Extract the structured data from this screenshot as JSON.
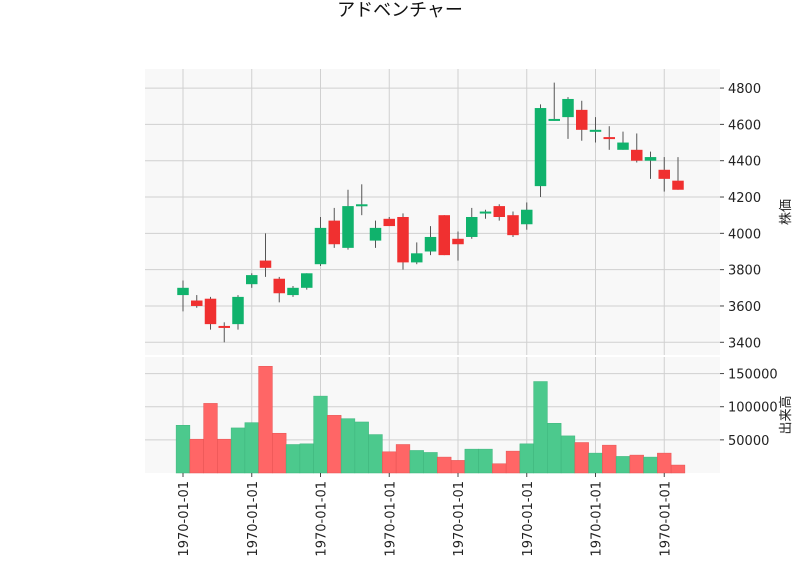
{
  "chart_data": {
    "type": "candlestick",
    "title": "アドベンチャー",
    "xlabel": "",
    "x_tick_labels": [
      "1970-01-01",
      "1970-01-01",
      "1970-01-01",
      "1970-01-01",
      "1970-01-01",
      "1970-01-01",
      "1970-01-01",
      "1970-01-01"
    ],
    "price_panel": {
      "ylabel": "株価",
      "ylim": [
        3330,
        4905
      ],
      "yticks": [
        3400,
        3600,
        3800,
        4000,
        4200,
        4400,
        4600,
        4800
      ],
      "grid": true
    },
    "volume_panel": {
      "ylabel": "出来高",
      "ylim": [
        0,
        175000
      ],
      "yticks": [
        50000,
        100000,
        150000
      ],
      "grid": true
    },
    "colors": {
      "up": "#10b26c",
      "down": "#f03030",
      "wick": "#555555",
      "grid": "#d0d0d0",
      "panel_bg": "#f8f8f8"
    },
    "candles": [
      {
        "open": 3660,
        "high": 3740,
        "low": 3570,
        "close": 3700,
        "volume": 72000
      },
      {
        "open": 3630,
        "high": 3660,
        "low": 3590,
        "close": 3600,
        "volume": 51000
      },
      {
        "open": 3640,
        "high": 3650,
        "low": 3470,
        "close": 3500,
        "volume": 105000
      },
      {
        "open": 3490,
        "high": 3510,
        "low": 3400,
        "close": 3480,
        "volume": 51000
      },
      {
        "open": 3500,
        "high": 3660,
        "low": 3470,
        "close": 3650,
        "volume": 68000
      },
      {
        "open": 3720,
        "high": 3780,
        "low": 3700,
        "close": 3770,
        "volume": 76000
      },
      {
        "open": 3850,
        "high": 4000,
        "low": 3760,
        "close": 3810,
        "volume": 161000
      },
      {
        "open": 3750,
        "high": 3760,
        "low": 3620,
        "close": 3670,
        "volume": 60000
      },
      {
        "open": 3660,
        "high": 3710,
        "low": 3650,
        "close": 3700,
        "volume": 43000
      },
      {
        "open": 3700,
        "high": 3780,
        "low": 3690,
        "close": 3780,
        "volume": 44000
      },
      {
        "open": 3830,
        "high": 4090,
        "low": 3820,
        "close": 4030,
        "volume": 116000
      },
      {
        "open": 4070,
        "high": 4140,
        "low": 3920,
        "close": 3940,
        "volume": 87000
      },
      {
        "open": 3920,
        "high": 4240,
        "low": 3910,
        "close": 4150,
        "volume": 82000
      },
      {
        "open": 4150,
        "high": 4270,
        "low": 4100,
        "close": 4160,
        "volume": 77000
      },
      {
        "open": 3960,
        "high": 4070,
        "low": 3920,
        "close": 4030,
        "volume": 58000
      },
      {
        "open": 4080,
        "high": 4090,
        "low": 4040,
        "close": 4040,
        "volume": 32000
      },
      {
        "open": 4090,
        "high": 4110,
        "low": 3800,
        "close": 3840,
        "volume": 43000
      },
      {
        "open": 3840,
        "high": 3950,
        "low": 3830,
        "close": 3890,
        "volume": 34000
      },
      {
        "open": 3900,
        "high": 4040,
        "low": 3880,
        "close": 3980,
        "volume": 31000
      },
      {
        "open": 4100,
        "high": 4100,
        "low": 3880,
        "close": 3880,
        "volume": 24000
      },
      {
        "open": 3970,
        "high": 4010,
        "low": 3850,
        "close": 3940,
        "volume": 19000
      },
      {
        "open": 3980,
        "high": 4140,
        "low": 3970,
        "close": 4090,
        "volume": 36000
      },
      {
        "open": 4110,
        "high": 4130,
        "low": 4080,
        "close": 4120,
        "volume": 36000
      },
      {
        "open": 4150,
        "high": 4160,
        "low": 4070,
        "close": 4090,
        "volume": 14000
      },
      {
        "open": 4100,
        "high": 4120,
        "low": 3980,
        "close": 3990,
        "volume": 33000
      },
      {
        "open": 4050,
        "high": 4170,
        "low": 4020,
        "close": 4130,
        "volume": 44000
      },
      {
        "open": 4260,
        "high": 4710,
        "low": 4200,
        "close": 4690,
        "volume": 138000
      },
      {
        "open": 4620,
        "high": 4830,
        "low": 4620,
        "close": 4630,
        "volume": 75000
      },
      {
        "open": 4640,
        "high": 4750,
        "low": 4520,
        "close": 4740,
        "volume": 56000
      },
      {
        "open": 4680,
        "high": 4730,
        "low": 4510,
        "close": 4570,
        "volume": 46000
      },
      {
        "open": 4570,
        "high": 4640,
        "low": 4500,
        "close": 4570,
        "volume": 30000
      },
      {
        "open": 4530,
        "high": 4590,
        "low": 4460,
        "close": 4520,
        "volume": 42000
      },
      {
        "open": 4460,
        "high": 4560,
        "low": 4460,
        "close": 4500,
        "volume": 25000
      },
      {
        "open": 4460,
        "high": 4550,
        "low": 4390,
        "close": 4400,
        "volume": 27000
      },
      {
        "open": 4400,
        "high": 4450,
        "low": 4300,
        "close": 4420,
        "volume": 24000
      },
      {
        "open": 4350,
        "high": 4420,
        "low": 4230,
        "close": 4300,
        "volume": 30000
      },
      {
        "open": 4290,
        "high": 4420,
        "low": 4240,
        "close": 4240,
        "volume": 12000
      }
    ]
  }
}
